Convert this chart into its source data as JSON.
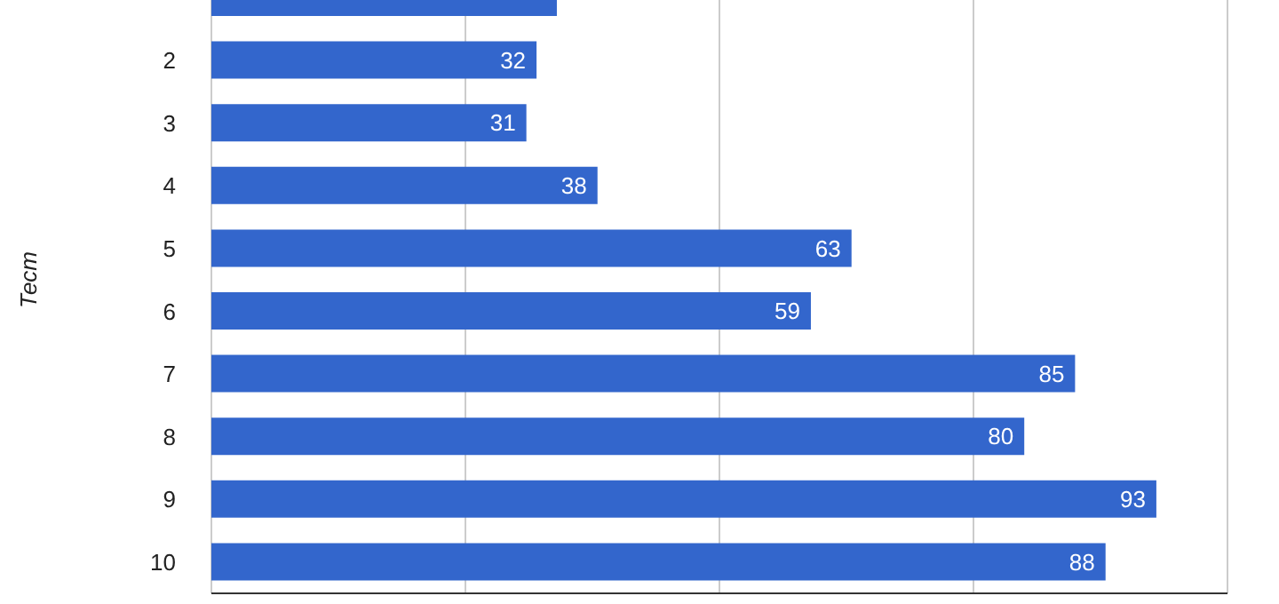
{
  "chart_data": {
    "type": "bar",
    "orientation": "horizontal",
    "ylabel": "Тест",
    "categories": [
      null,
      "2",
      "3",
      "4",
      "5",
      "6",
      "7",
      "8",
      "9",
      "10"
    ],
    "values": [
      34,
      32,
      31,
      38,
      63,
      59,
      85,
      80,
      93,
      88
    ],
    "value_labels": [
      null,
      "32",
      "31",
      "38",
      "63",
      "59",
      "85",
      "80",
      "93",
      "88"
    ],
    "color": "#3366cc",
    "xlim": [
      0,
      100
    ],
    "xticks": [
      {
        "value": 0,
        "label": null
      },
      {
        "value": 25,
        "label": null
      },
      {
        "value": 50,
        "label": null
      },
      {
        "value": 75,
        "label": null
      },
      {
        "value": 100,
        "label": null
      }
    ],
    "grid": "x",
    "tick_labels": "y"
  }
}
